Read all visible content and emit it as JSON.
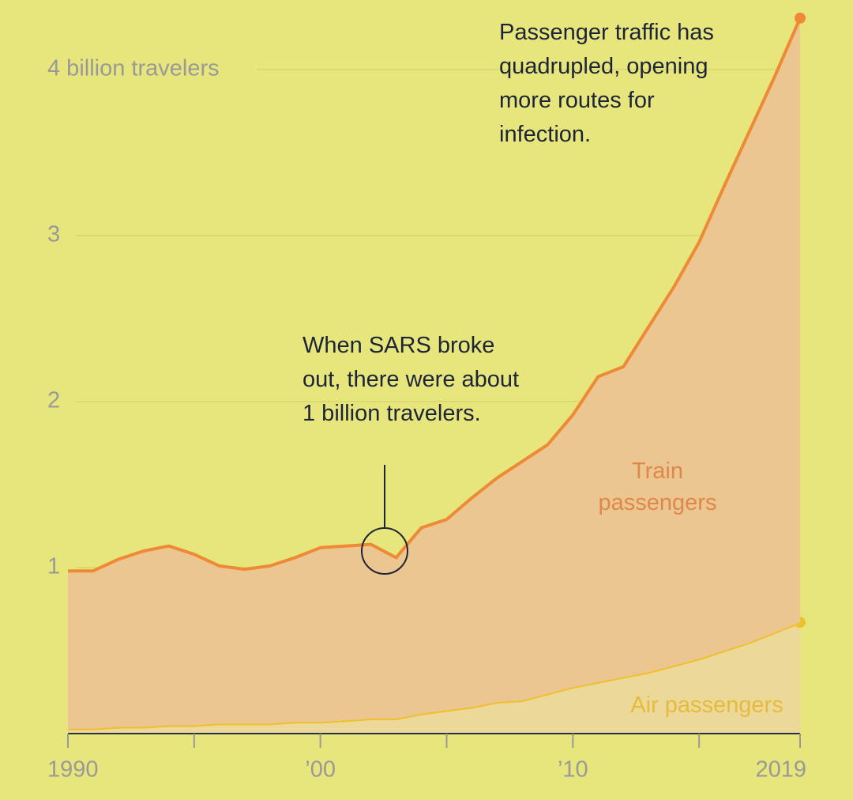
{
  "chart_data": {
    "type": "stacked_area",
    "annotations": [
      "Passenger traffic has quadrupled, opening more routes for infection.",
      "When SARS broke out, there were about 1 billion travelers."
    ],
    "x": [
      1990,
      1991,
      1992,
      1993,
      1994,
      1995,
      1996,
      1997,
      1998,
      1999,
      2000,
      2001,
      2002,
      2003,
      2004,
      2005,
      2006,
      2007,
      2008,
      2009,
      2010,
      2011,
      2012,
      2013,
      2014,
      2015,
      2016,
      2017,
      2018,
      2019
    ],
    "series": [
      {
        "name": "Air passengers",
        "color": "#efbf2c",
        "values": [
          0.03,
          0.03,
          0.04,
          0.04,
          0.05,
          0.05,
          0.06,
          0.06,
          0.06,
          0.07,
          0.07,
          0.08,
          0.09,
          0.09,
          0.12,
          0.14,
          0.16,
          0.19,
          0.2,
          0.24,
          0.28,
          0.31,
          0.34,
          0.37,
          0.41,
          0.45,
          0.5,
          0.55,
          0.61,
          0.67
        ]
      },
      {
        "name": "Train passengers",
        "color": "#ee8a35",
        "values": [
          0.95,
          0.95,
          1.01,
          1.06,
          1.08,
          1.03,
          0.95,
          0.93,
          0.95,
          0.99,
          1.05,
          1.05,
          1.05,
          0.97,
          1.12,
          1.15,
          1.26,
          1.35,
          1.44,
          1.5,
          1.64,
          1.84,
          1.87,
          2.08,
          2.28,
          2.51,
          2.8,
          3.08,
          3.35,
          3.64
        ]
      }
    ],
    "xlim": [
      1990,
      2019
    ],
    "xticks": [
      1990,
      {
        "value": 2000,
        "label": "’00"
      },
      {
        "value": 2010,
        "label": "’10"
      },
      2019
    ],
    "minor_xticks": [
      1995,
      2005,
      2015
    ],
    "ylim": [
      0,
      4.4
    ],
    "yticks": [
      1,
      2,
      3,
      {
        "value": 4,
        "label": "4 billion travelers"
      }
    ],
    "grid": true
  }
}
